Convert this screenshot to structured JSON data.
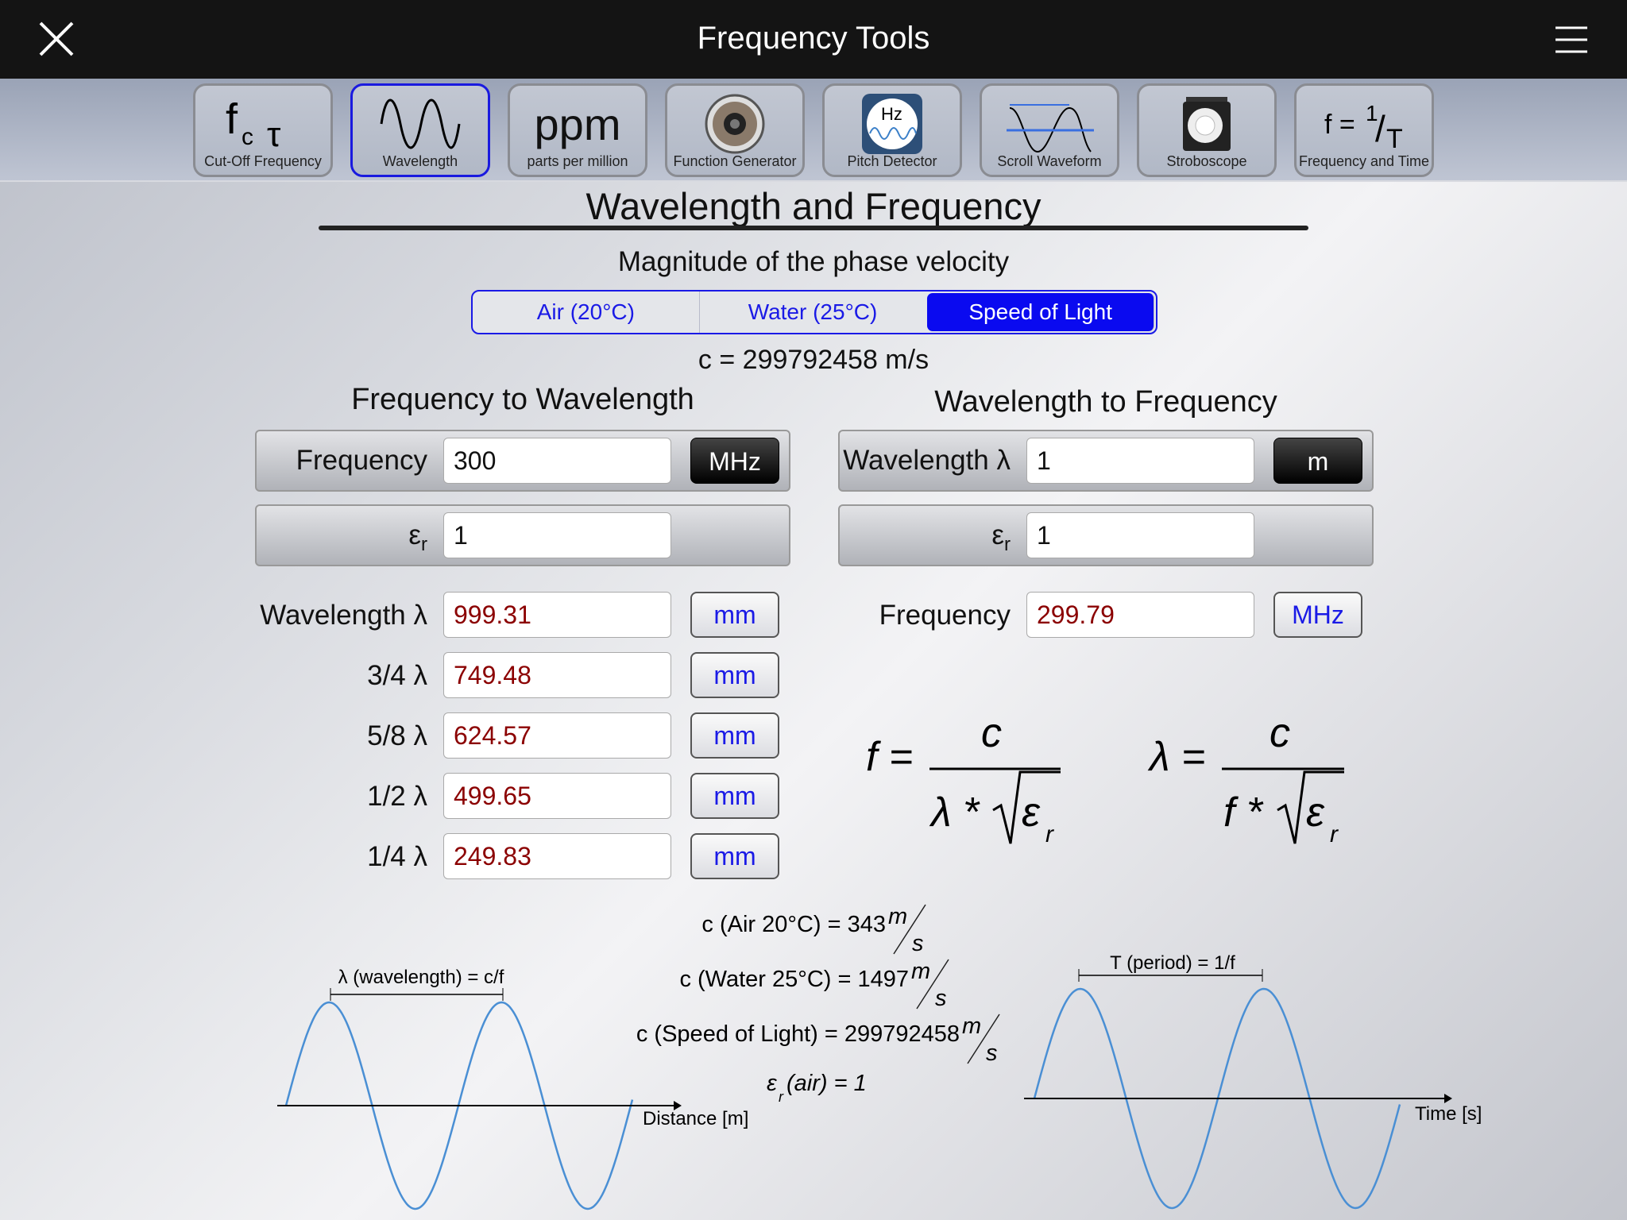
{
  "header": {
    "title": "Frequency Tools",
    "close_icon": "close-x-icon",
    "menu_icon": "hamburger-menu-icon"
  },
  "toolbar": {
    "items": [
      {
        "label": "Cut-Off Frequency",
        "icon": "fc-tau-icon",
        "glyph": "fc τ",
        "active": false
      },
      {
        "label": "Wavelength",
        "icon": "sine-wave-icon",
        "active": true
      },
      {
        "label": "parts per million",
        "icon": "ppm-icon",
        "glyph": "ppm",
        "active": false
      },
      {
        "label": "Function Generator",
        "icon": "speaker-icon",
        "active": false
      },
      {
        "label": "Pitch Detector",
        "icon": "hz-wave-icon",
        "glyph": "Hz",
        "active": false
      },
      {
        "label": "Scroll Waveform",
        "icon": "scroll-waveform-icon",
        "active": false
      },
      {
        "label": "Stroboscope",
        "icon": "strobe-light-icon",
        "active": false
      },
      {
        "label": "Frequency and Time",
        "icon": "f-equals-1-over-t-icon",
        "glyph": "f = 1/T",
        "active": false
      }
    ]
  },
  "main": {
    "title": "Wavelength and Frequency",
    "velocity_label": "Magnitude of the phase velocity",
    "media": [
      {
        "label": "Air (20°C)",
        "selected": false
      },
      {
        "label": "Water (25°C)",
        "selected": false
      },
      {
        "label": "Speed of Light",
        "selected": true
      }
    ],
    "c_value": "c = 299792458 m/s",
    "f2w": {
      "heading": "Frequency to Wavelength",
      "freq_label": "Frequency",
      "freq_value": "300",
      "freq_unit": "MHz",
      "er_label": "ε",
      "er_sub": "r",
      "er_value": "1",
      "results": [
        {
          "label": "Wavelength λ",
          "value": "999.31",
          "unit": "mm"
        },
        {
          "label": "3/4 λ",
          "value": "749.48",
          "unit": "mm"
        },
        {
          "label": "5/8 λ",
          "value": "624.57",
          "unit": "mm"
        },
        {
          "label": "1/2 λ",
          "value": "499.65",
          "unit": "mm"
        },
        {
          "label": "1/4 λ",
          "value": "249.83",
          "unit": "mm"
        }
      ]
    },
    "w2f": {
      "heading": "Wavelength to Frequency",
      "wl_label": "Wavelength λ",
      "wl_value": "1",
      "wl_unit": "m",
      "er_label": "ε",
      "er_sub": "r",
      "er_value": "1",
      "result": {
        "label": "Frequency",
        "value": "299.79",
        "unit": "MHz"
      }
    },
    "formulas": {
      "f_lhs": "f =",
      "lambda_lhs": "λ =",
      "num": "c",
      "den_f": "λ *",
      "den_l": "f *",
      "eps": "ε",
      "eps_sub": "r"
    },
    "constants": [
      {
        "text": "c (Air 20°C) = 343",
        "unit_num": "m",
        "unit_den": "s"
      },
      {
        "text": "c (Water 25°C) = 1497",
        "unit_num": "m",
        "unit_den": "s"
      },
      {
        "text": "c (Speed of Light) = 299792458",
        "unit_num": "m",
        "unit_den": "s"
      }
    ],
    "eps_air": {
      "eps": "ε",
      "sub": "r",
      "text": "(air) = 1"
    },
    "diagram_left": {
      "label": "λ (wavelength) = c/f",
      "axis": "Distance [m]"
    },
    "diagram_right": {
      "label": "T (period) = 1/f",
      "axis": "Time [s]"
    },
    "colors": {
      "accent": "#1a1ae6",
      "result": "#8b0000",
      "wave": "#4a8fd4"
    }
  }
}
